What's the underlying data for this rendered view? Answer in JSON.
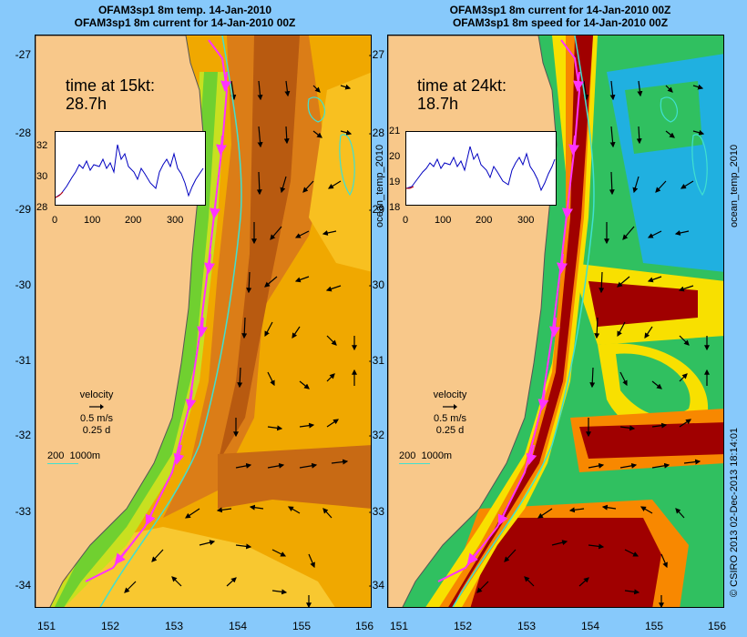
{
  "left_panel": {
    "title_line1": "OFAM3sp1 8m temp. 14-Jan-2010",
    "title_line2": "OFAM3sp1 8m current for 14-Jan-2010 00Z",
    "time_label": "time at 15kt:",
    "time_value": "28.7h",
    "inset_yticks": [
      "32",
      "30",
      "28"
    ],
    "inset_xticks": [
      "0",
      "100",
      "200",
      "300"
    ],
    "side_label": "ocean_temp_2010"
  },
  "right_panel": {
    "title_line1": "OFAM3sp1 8m current for 14-Jan-2010 00Z",
    "title_line2": "OFAM3sp1 8m speed for 14-Jan-2010 00Z",
    "time_label": "time at 24kt:",
    "time_value": "18.7h",
    "inset_yticks": [
      "21",
      "20",
      "19",
      "18"
    ],
    "inset_xticks": [
      "0",
      "100",
      "200",
      "300"
    ],
    "side_label": "ocean_temp_2010"
  },
  "lat_ticks": [
    "-27",
    "-28",
    "-29",
    "-30",
    "-31",
    "-32",
    "-33",
    "-34"
  ],
  "lon_ticks": [
    "151",
    "152",
    "153",
    "154",
    "155",
    "156"
  ],
  "legend": {
    "title": "velocity",
    "speed": "0.5 m/s",
    "duration": "0.25 d",
    "depth_label": "200  1000m"
  },
  "credit": "© CSIRO 2013   02-Dec-2013 18:14:01",
  "colors": {
    "background": "#87c9fb",
    "land": "#f8c88a",
    "track": "#ff33ff",
    "contour": "#40e0d0"
  }
}
